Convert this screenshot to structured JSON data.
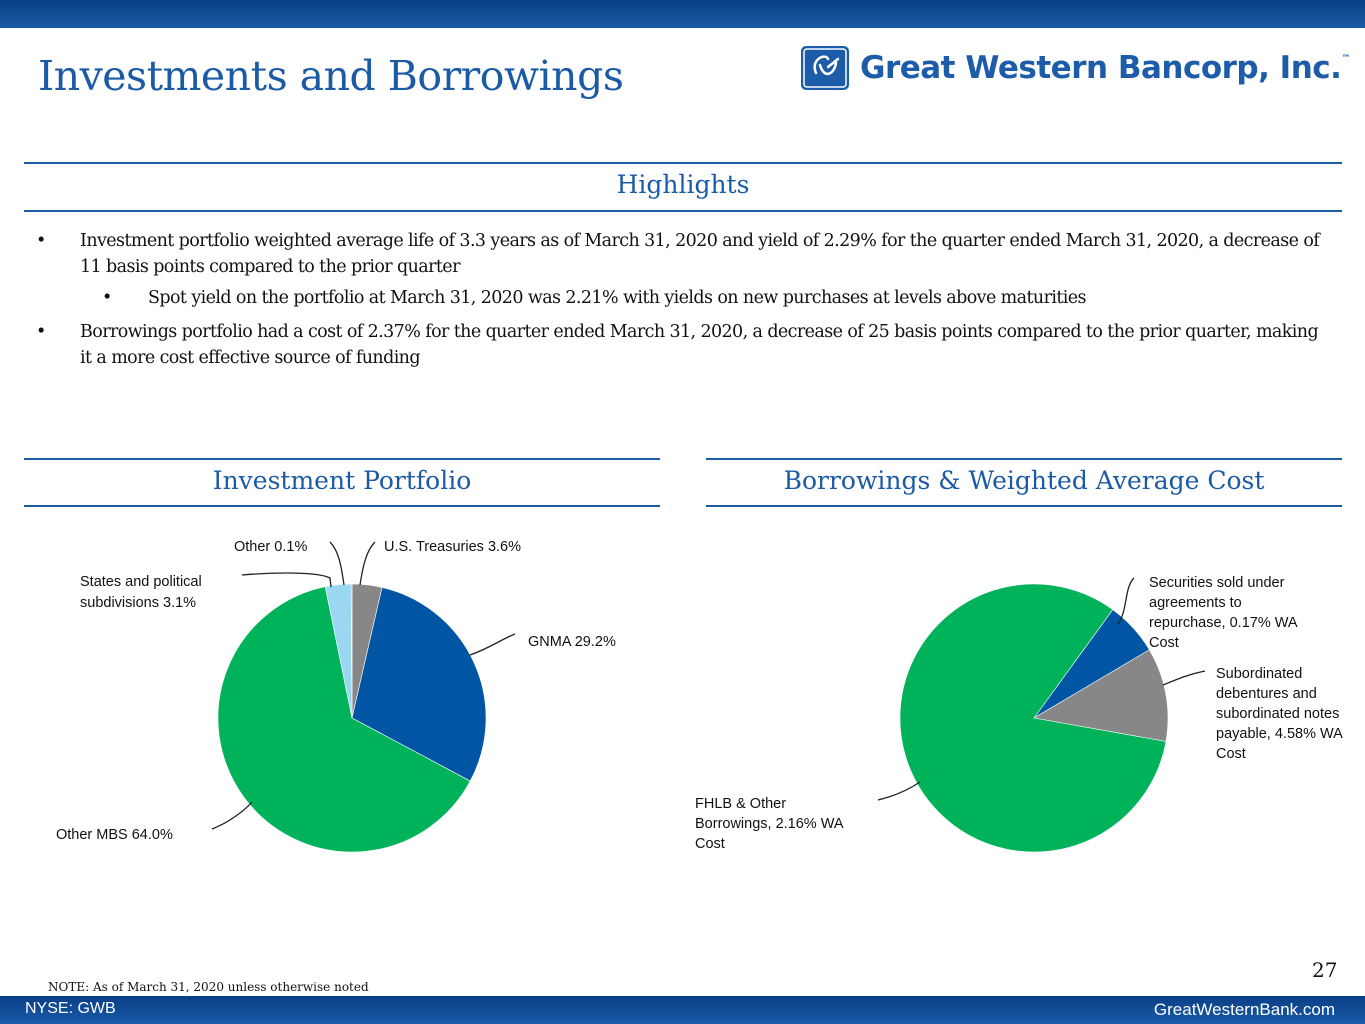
{
  "title": "Investments and Borrowings",
  "logo": {
    "text": "Great Western Bancorp, Inc.",
    "tm": "™",
    "mark": "GW"
  },
  "highlights": {
    "heading": "Highlights",
    "bullets": [
      {
        "marker": "•",
        "text": "Investment portfolio weighted average life of 3.3 years as of March 31, 2020 and yield of 2.29% for the quarter ended March 31, 2020, a decrease of 11 basis points compared to the prior quarter"
      },
      {
        "marker": "•",
        "text": "Spot yield on the portfolio at March 31, 2020 was 2.21% with yields on new purchases at levels above maturities"
      },
      {
        "marker": "•",
        "text": "Borrowings portfolio had a cost of 2.37% for the quarter ended March 31, 2020, a decrease of 25 basis points compared to the prior quarter, making it a more cost effective source of funding"
      }
    ]
  },
  "chart_data": [
    {
      "type": "pie",
      "title": "Investment Portfolio",
      "slices": [
        {
          "label": "U.S. Treasuries 3.6%",
          "value": 3.6,
          "color": "#878787"
        },
        {
          "label": "GNMA 29.2%",
          "value": 29.2,
          "color": "#0055a4"
        },
        {
          "label": "Other MBS 64.0%",
          "value": 64.0,
          "color": "#00b25a"
        },
        {
          "label": "States and political subdivisions 3.1%",
          "value": 3.1,
          "color": "#9ad8f2"
        },
        {
          "label": "Other 0.1%",
          "value": 0.1,
          "color": "#555555"
        }
      ]
    },
    {
      "type": "pie",
      "title": "Borrowings & Weighted Average Cost",
      "slices": [
        {
          "label": "Securities sold under agreements to repurchase, 0.17% WA Cost",
          "value": 6.5,
          "color": "#0055a4"
        },
        {
          "label": "Subordinated debentures and subordinated notes payable, 4.58% WA Cost",
          "value": 11.3,
          "color": "#878787"
        },
        {
          "label": "FHLB & Other Borrowings, 2.16% WA Cost",
          "value": 82.2,
          "color": "#00b25a"
        }
      ]
    }
  ],
  "note": "NOTE: As of March 31, 2020 unless otherwise noted",
  "page_number": "27",
  "footer": {
    "left": "NYSE: GWB",
    "right": "GreatWesternBank.com"
  }
}
